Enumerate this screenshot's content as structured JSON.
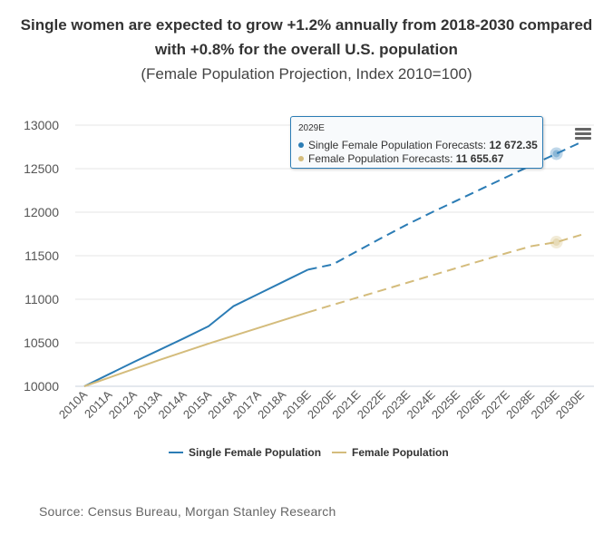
{
  "chart_data": {
    "type": "line",
    "title": "Single women are expected to grow +1.2% annually from 2018-2030 compared with +0.8% for the overall U.S. population",
    "title_lines": [
      "Single women are expected to grow +1.2% annually from 2018-2030 compared",
      "with +0.8% for the overall U.S. population"
    ],
    "subtitle": "(Female Population Projection, Index 2010=100)",
    "categories": [
      "2010A",
      "2011A",
      "2012A",
      "2013A",
      "2014A",
      "2015A",
      "2016A",
      "2017A",
      "2018A",
      "2019E",
      "2020E",
      "2021E",
      "2022E",
      "2023E",
      "2024E",
      "2025E",
      "2026E",
      "2027E",
      "2028E",
      "2029E",
      "2030E"
    ],
    "ylim": [
      10000,
      13000
    ],
    "yticks": [
      10000,
      10500,
      11000,
      11500,
      12000,
      12500,
      13000
    ],
    "xlabel": "",
    "ylabel": "",
    "series": [
      {
        "name": "Single Female Population",
        "color": "#2b7cb5",
        "actual_end_index": 9,
        "values": [
          10000,
          10140,
          10280,
          10415,
          10550,
          10690,
          10920,
          11060,
          11200,
          11340,
          11400,
          11555,
          11710,
          11860,
          12000,
          12135,
          12270,
          12405,
          12540,
          12672.35,
          12805
        ]
      },
      {
        "name": "Female Population",
        "color": "#d4bc7c",
        "actual_end_index": 9,
        "values": [
          10000,
          10100,
          10200,
          10300,
          10395,
          10490,
          10580,
          10670,
          10760,
          10850,
          10935,
          11020,
          11105,
          11190,
          11275,
          11360,
          11445,
          11530,
          11610,
          11655.67,
          11740
        ]
      }
    ],
    "highlight_index": 19,
    "legend": {
      "position": "bottom",
      "items": [
        "Single Female Population",
        "Female Population"
      ]
    },
    "tooltip": {
      "header": "2029E",
      "rows": [
        {
          "label": "Single Female Population Forecasts:",
          "value": "12 672.35",
          "color": "#2b7cb5"
        },
        {
          "label": "Female Population Forecasts:",
          "value": "11 655.67",
          "color": "#d4bc7c"
        }
      ]
    },
    "source": "Source: Census Bureau, Morgan Stanley Research"
  }
}
